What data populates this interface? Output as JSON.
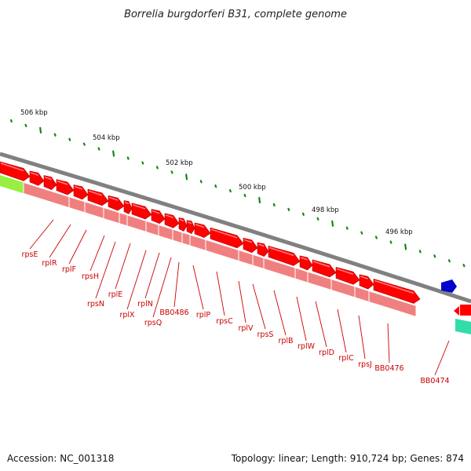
{
  "title": "Borrelia burgdorferi B31, complete genome",
  "accession": "Accession: NC_001318",
  "summary": "Topology: linear; Length: 910,724 bp; Genes: 874",
  "colors": {
    "backbone": "#808080",
    "gene_forward": "#ff0000",
    "gene_protein": "#f08080",
    "gene_label": "#cc0000",
    "tick": "#118811",
    "feature_other": "#0000cc",
    "feature_green_left": "#99ee44",
    "feature_green_right": "#33ddaa"
  },
  "scale_labels": [
    "506 kbp",
    "504 kbp",
    "502 kbp",
    "500 kbp",
    "498 kbp",
    "496 kbp"
  ],
  "genes": [
    "rpsE",
    "rplR",
    "rplF",
    "rpsH",
    "rpsN",
    "rplE",
    "rplX",
    "rplN",
    "rpsQ",
    "BB0486",
    "rplP",
    "rpsC",
    "rplV",
    "rpsS",
    "rplB",
    "rplW",
    "rplD",
    "rplC",
    "rpsJ",
    "BB0476",
    "BB0474"
  ]
}
